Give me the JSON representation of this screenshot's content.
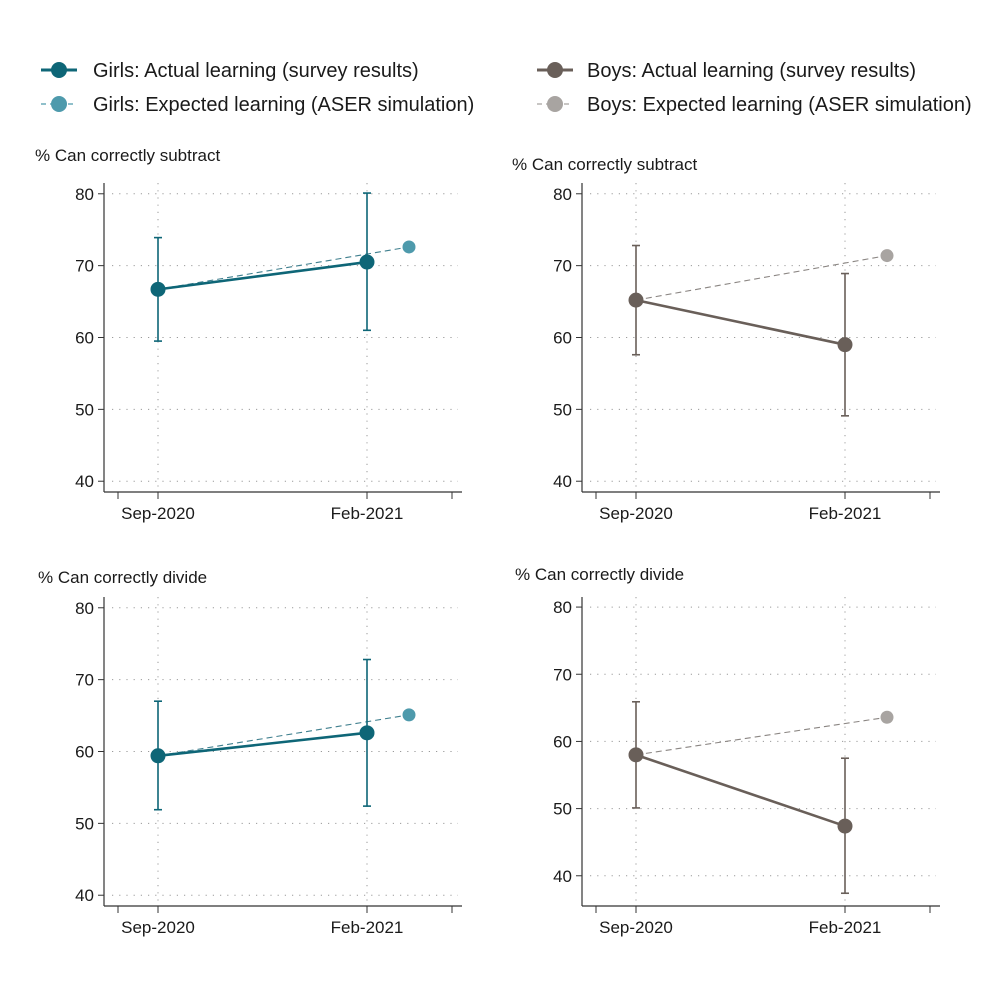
{
  "legend": {
    "girls_actual": "Girls: Actual learning (survey results)",
    "girls_expected": "Girls: Expected learning (ASER simulation)",
    "boys_actual": "Boys: Actual learning (survey results)",
    "boys_expected": "Boys: Expected learning (ASER simulation)"
  },
  "colors": {
    "girls_actual": "#0e6677",
    "girls_expected": "#4e9aac",
    "boys_actual": "#695f59",
    "boys_expected": "#a8a4a1",
    "axis": "#333333",
    "grid": "#9a9a9a"
  },
  "chart_data": [
    {
      "type": "line",
      "title": "% Can correctly subtract",
      "group": "girls",
      "categories": [
        "Sep-2020",
        "Feb-2021"
      ],
      "yticks": [
        40,
        50,
        60,
        70,
        80
      ],
      "ylim": [
        38.5,
        81.5
      ],
      "actual": {
        "values": [
          66.7,
          70.5
        ],
        "ci_low": [
          59.5,
          61.0
        ],
        "ci_high": [
          73.9,
          80.1
        ]
      },
      "expected": {
        "value": 72.6
      }
    },
    {
      "type": "line",
      "title": "% Can correctly subtract",
      "group": "boys",
      "categories": [
        "Sep-2020",
        "Feb-2021"
      ],
      "yticks": [
        40,
        50,
        60,
        70,
        80
      ],
      "ylim": [
        38.5,
        81.5
      ],
      "actual": {
        "values": [
          65.2,
          59.0
        ],
        "ci_low": [
          57.6,
          49.1
        ],
        "ci_high": [
          72.8,
          68.9
        ]
      },
      "expected": {
        "value": 71.4
      }
    },
    {
      "type": "line",
      "title": "% Can correctly divide",
      "group": "girls",
      "categories": [
        "Sep-2020",
        "Feb-2021"
      ],
      "yticks": [
        40,
        50,
        60,
        70,
        80
      ],
      "ylim": [
        38.5,
        81.5
      ],
      "actual": {
        "values": [
          59.4,
          62.6
        ],
        "ci_low": [
          51.9,
          52.4
        ],
        "ci_high": [
          67.0,
          72.8
        ]
      },
      "expected": {
        "value": 65.1
      }
    },
    {
      "type": "line",
      "title": "% Can correctly divide",
      "group": "boys",
      "categories": [
        "Sep-2020",
        "Feb-2021"
      ],
      "yticks": [
        40,
        50,
        60,
        70,
        80
      ],
      "ylim": [
        35.5,
        81.5
      ],
      "actual": {
        "values": [
          58.0,
          47.4
        ],
        "ci_low": [
          50.1,
          37.4
        ],
        "ci_high": [
          65.9,
          57.5
        ]
      },
      "expected": {
        "value": 63.6
      }
    }
  ]
}
